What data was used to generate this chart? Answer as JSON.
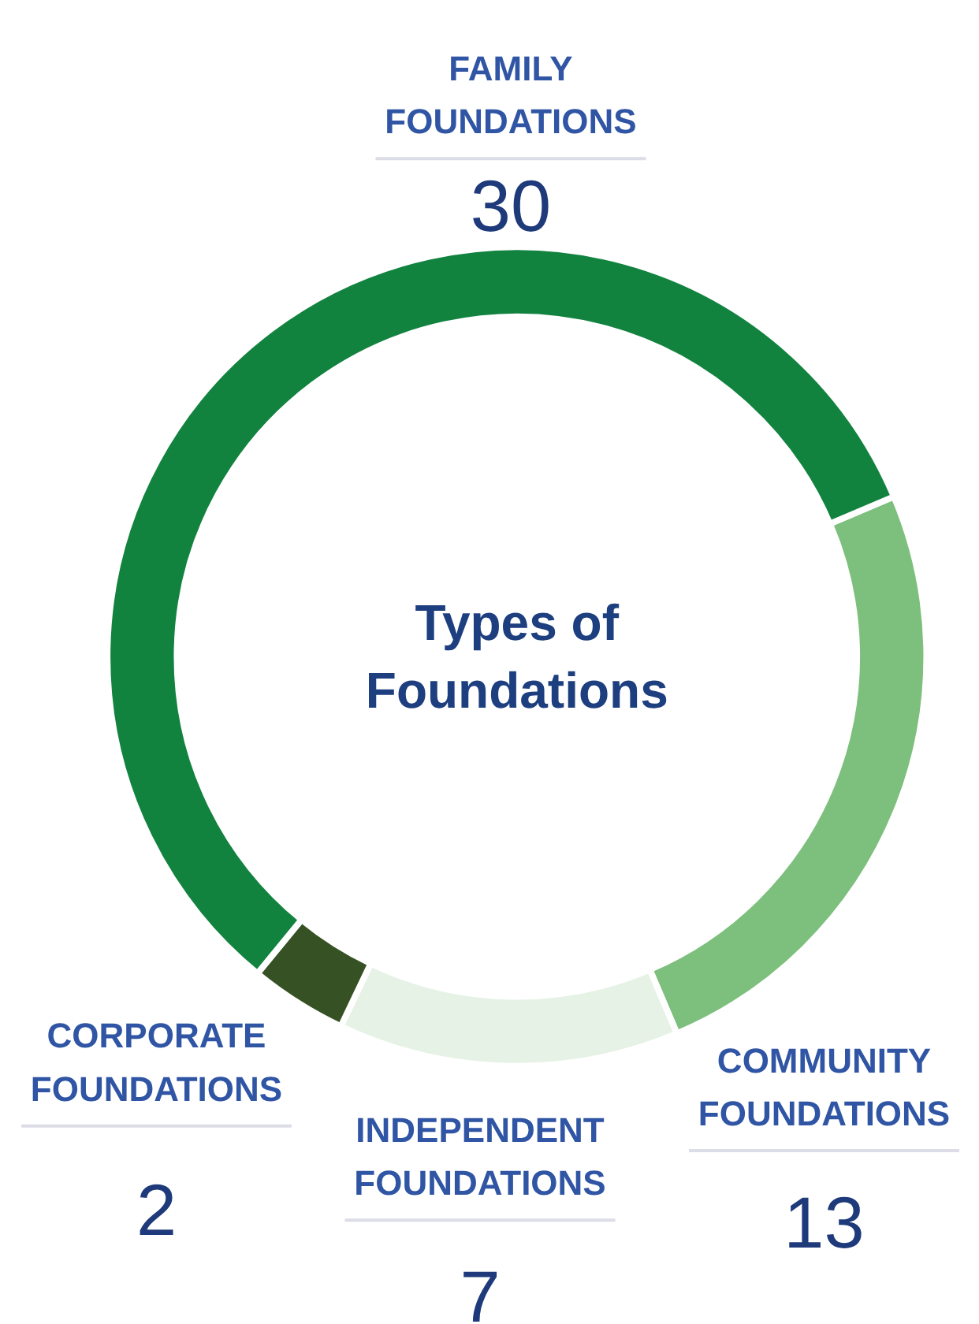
{
  "chart_data": {
    "type": "donut",
    "title": "Types of Foundations",
    "categories": [
      "COMMUNITY FOUNDATIONS",
      "INDEPENDENT FOUNDATIONS",
      "CORPORATE FOUNDATIONS",
      "FAMILY FOUNDATIONS"
    ],
    "values": [
      13,
      7,
      2,
      30
    ],
    "colors": [
      "#7dbf7c",
      "#e6f2e5",
      "#365224",
      "#12823f"
    ],
    "data_labels": true
  }
}
